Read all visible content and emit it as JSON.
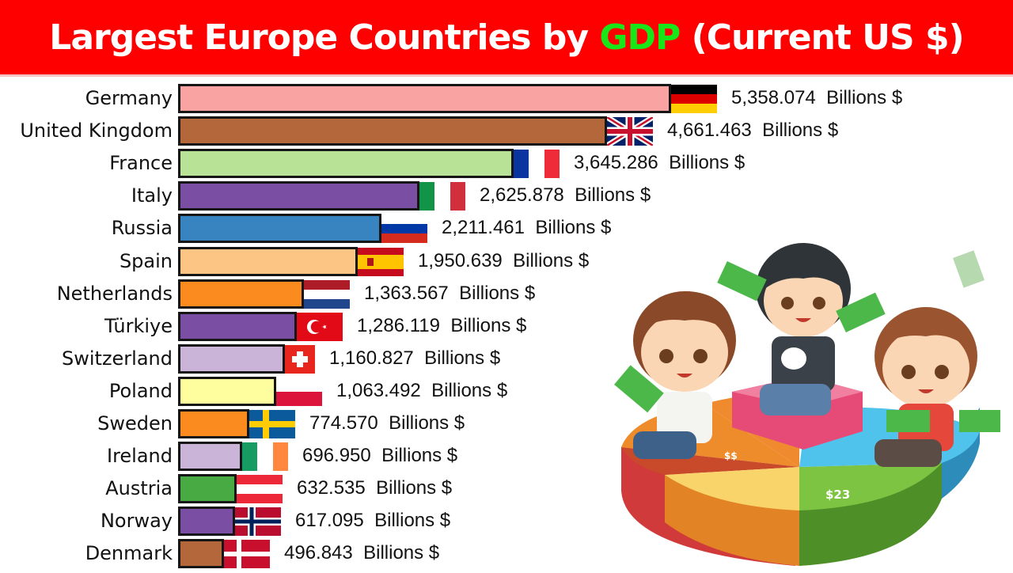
{
  "header": {
    "title_before": "Largest Europe Countries by ",
    "title_accent": "GDP",
    "title_after": " (Current US $)",
    "background_color": "#fe0000",
    "accent_color": "#19e619"
  },
  "unit_label": "Billions $",
  "chart_data": {
    "type": "bar",
    "orientation": "horizontal",
    "title": "Largest Europe Countries by GDP (Current US $)",
    "xlabel": "",
    "ylabel": "",
    "unit": "Billions $",
    "grid": false,
    "legend": "none",
    "categories": [
      "Germany",
      "United Kingdom",
      "France",
      "Italy",
      "Russia",
      "Spain",
      "Netherlands",
      "Türkiye",
      "Switzerland",
      "Poland",
      "Sweden",
      "Ireland",
      "Austria",
      "Norway",
      "Denmark"
    ],
    "values": [
      5358.074,
      4661.463,
      3645.286,
      2625.878,
      2211.461,
      1950.639,
      1363.567,
      1286.119,
      1160.827,
      1063.492,
      774.57,
      696.95,
      632.535,
      617.095,
      496.843
    ],
    "value_labels": [
      "5,358.074",
      "4,661.463",
      "3,645.286",
      "2,625.878",
      "2,211.461",
      "1,950.639",
      "1,363.567",
      "1,286.119",
      "1,160.827",
      "1,063.492",
      "774.570",
      "696.950",
      "632.535",
      "617.095",
      "496.843"
    ],
    "colors": [
      "#f9a3a3",
      "#b5673c",
      "#b8e295",
      "#7a4ea3",
      "#3784c0",
      "#fdc583",
      "#fb8b1e",
      "#7a4ea3",
      "#cab5d8",
      "#fefe9e",
      "#fb8b1e",
      "#cab5d8",
      "#47aa42",
      "#7a4ea3",
      "#b5673c"
    ]
  },
  "rows": [
    {
      "name": "Germany",
      "value": "5,358.074",
      "flag": "germany-flag"
    },
    {
      "name": "United Kingdom",
      "value": "4,661.463",
      "flag": "uk-flag"
    },
    {
      "name": "France",
      "value": "3,645.286",
      "flag": "france-flag"
    },
    {
      "name": "Italy",
      "value": "2,625.878",
      "flag": "italy-flag"
    },
    {
      "name": "Russia",
      "value": "2,211.461",
      "flag": "russia-flag"
    },
    {
      "name": "Spain",
      "value": "1,950.639",
      "flag": "spain-flag"
    },
    {
      "name": "Netherlands",
      "value": "1,363.567",
      "flag": "netherlands-flag"
    },
    {
      "name": "Türkiye",
      "value": "1,286.119",
      "flag": "turkey-flag"
    },
    {
      "name": "Switzerland",
      "value": "1,160.827",
      "flag": "switzerland-flag"
    },
    {
      "name": "Poland",
      "value": "1,063.492",
      "flag": "poland-flag"
    },
    {
      "name": "Sweden",
      "value": "774.570",
      "flag": "sweden-flag"
    },
    {
      "name": "Ireland",
      "value": "696.950",
      "flag": "ireland-flag"
    },
    {
      "name": "Austria",
      "value": "632.535",
      "flag": "austria-flag"
    },
    {
      "name": "Norway",
      "value": "617.095",
      "flag": "norway-flag"
    },
    {
      "name": "Denmark",
      "value": "496.843",
      "flag": "denmark-flag"
    }
  ],
  "illustration": {
    "description": "three cartoon boys holding dollar bills sitting on a 3D pie chart",
    "pie_labels": [
      "$$",
      "$23"
    ]
  }
}
